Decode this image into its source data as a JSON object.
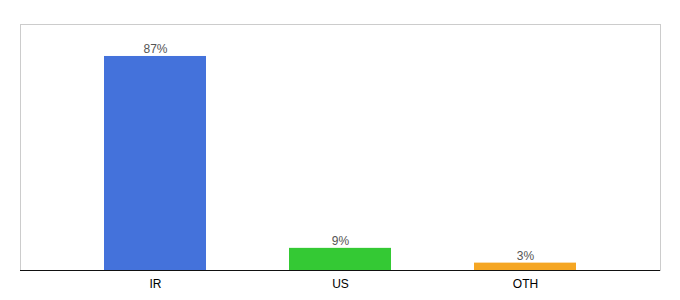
{
  "chart_data": {
    "type": "bar",
    "categories": [
      "IR",
      "US",
      "OTH"
    ],
    "values": [
      87,
      9,
      3
    ],
    "value_labels": [
      "87%",
      "9%",
      "3%"
    ],
    "colors": [
      "#4472db",
      "#34c934",
      "#f5a623"
    ],
    "ylim": [
      0,
      100
    ],
    "data_labels": true,
    "tick_labels": "x",
    "grid": false
  }
}
